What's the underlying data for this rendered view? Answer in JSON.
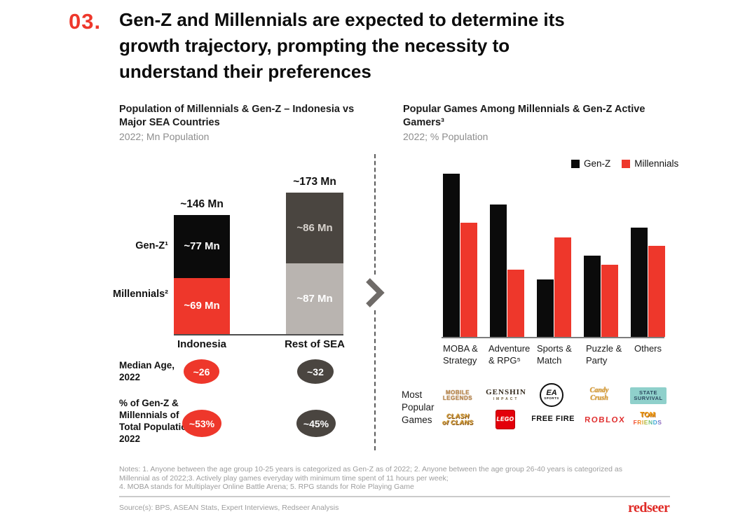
{
  "header": {
    "number": "03.",
    "title_lines": [
      "Gen-Z and Millennials are expected to determine its",
      "growth trajectory, prompting the necessity to",
      "understand their preferences"
    ]
  },
  "colors": {
    "accent_red": "#ee372b",
    "black_bar": "#0b0b0b",
    "dark_gray_bar": "#4a4540",
    "light_gray_bar": "#b9b4b0"
  },
  "left_chart": {
    "title_lines": [
      "Population of Millennials & Gen-Z – Indonesia vs",
      "Major SEA Countries"
    ],
    "subtitle": "2022; Mn Population",
    "side_labels": {
      "gen_z": "Gen-Z¹",
      "millennials": "Millennials²"
    },
    "bars": [
      {
        "category": "Indonesia",
        "total": "~146 Mn",
        "gen_z_label": "~77 Mn",
        "millennials_label": "~69 Mn"
      },
      {
        "category": "Rest of SEA",
        "total": "~173 Mn",
        "gen_z_label": "~86 Mn",
        "millennials_label": "~87 Mn"
      }
    ],
    "stats": [
      {
        "label": "Median Age,\n2022",
        "indonesia": "~26",
        "rest_of_sea": "~32"
      },
      {
        "label": "% of Gen-Z &\nMillennials of\nTotal Population,\n2022",
        "indonesia": "~53%",
        "rest_of_sea": "~45%"
      }
    ]
  },
  "right_chart": {
    "title_lines": [
      "Popular Games Among Millennials & Gen-Z Active",
      "Gamers³"
    ],
    "subtitle": "2022; % Population",
    "category_lines": [
      "MOBA &\nStrategy",
      "Adventure\n& RPG⁵",
      "Sports &\nMatch",
      "Puzzle &\nParty",
      "Others"
    ]
  },
  "most_popular": {
    "label": "Most\nPopular\nGames",
    "games": [
      {
        "id": "mobile-legends",
        "name": "Mobile Legends",
        "lines": [
          "MOBILE",
          "LEGENDS"
        ]
      },
      {
        "id": "genshin-impact",
        "name": "Genshin Impact",
        "lines": [
          "GENSHIN",
          "IMPACT"
        ]
      },
      {
        "id": "ea-sports",
        "name": "EA Sports",
        "lines": [
          "EA",
          "SPORTS"
        ]
      },
      {
        "id": "candy-crush",
        "name": "Candy Crush",
        "lines": [
          "Candy",
          "Crush"
        ]
      },
      {
        "id": "state-survival",
        "name": "State Survival",
        "lines": [
          "STATE",
          "SURVIVAL"
        ]
      },
      {
        "id": "clash-of-clans",
        "name": "Clash of Clans",
        "lines": [
          "CLASH",
          "of CLANS"
        ]
      },
      {
        "id": "lego",
        "name": "LEGO",
        "lines": [
          "LEGO"
        ]
      },
      {
        "id": "free-fire",
        "name": "Free Fire",
        "lines": [
          "FREE FIRE"
        ]
      },
      {
        "id": "roblox",
        "name": "Roblox",
        "lines": [
          "ROBLOX"
        ]
      },
      {
        "id": "tom-friends",
        "name": "Tom Friends",
        "lines": [
          "TOM",
          "FRIENDS"
        ]
      }
    ]
  },
  "footer": {
    "notes_lines": [
      "Notes: 1. Anyone between the age group 10-25 years is categorized as Gen-Z as of 2022;  2. Anyone between the age group 26-40 years is categorized as",
      "Millennial as of 2022;3. Actively play games everyday with minimum time spent of 11 hours per week;",
      "4. MOBA stands for Multiplayer Online Battle Arena; 5. RPG stands for Role Playing Game"
    ],
    "source": "Source(s): BPS, ASEAN Stats, Expert Interviews, Redseer Analysis",
    "logo": "redseer"
  },
  "chart_data": [
    {
      "type": "bar",
      "subtype": "stacked",
      "title": "Population of Millennials & Gen-Z – Indonesia vs Major SEA Countries",
      "subtitle": "2022; Mn Population",
      "unit": "Mn Population",
      "categories": [
        "Indonesia",
        "Rest of SEA"
      ],
      "series": [
        {
          "name": "Gen-Z",
          "values": [
            77,
            86
          ]
        },
        {
          "name": "Millennials",
          "values": [
            69,
            87
          ]
        }
      ],
      "totals": [
        146,
        173
      ],
      "values_approximate": true,
      "grid": false,
      "extra_stats": [
        {
          "label": "Median Age, 2022",
          "values": [
            "~26",
            "~32"
          ]
        },
        {
          "label": "% of Gen-Z & Millennials of Total Population, 2022",
          "values": [
            "~53%",
            "~45%"
          ]
        }
      ]
    },
    {
      "type": "bar",
      "subtype": "grouped",
      "title": "Popular Games Among Millennials & Gen-Z Active Gamers³",
      "subtitle": "2022; % Population",
      "categories": [
        "MOBA & Strategy",
        "Adventure & RPG⁵",
        "Sports & Match",
        "Puzzle & Party",
        "Others"
      ],
      "series": [
        {
          "name": "Gen-Z",
          "color": "#0b0b0b",
          "values": [
            100,
            81,
            35,
            50,
            67
          ]
        },
        {
          "name": "Millennials",
          "color": "#ee372b",
          "values": [
            70,
            41,
            61,
            44,
            56
          ]
        }
      ],
      "value_note": "no axis or data labels shown; values are relative heights indexed to tallest bar = 100",
      "grid": false,
      "legend_position": "top-right"
    }
  ]
}
